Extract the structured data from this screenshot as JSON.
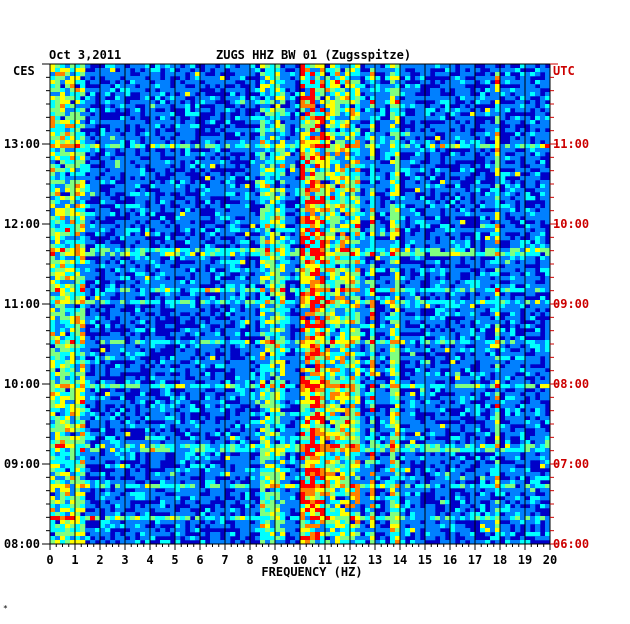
{
  "header": {
    "date": "Oct 3,2011",
    "station": "ZUGS HHZ BW 01 (Zugsspitze)"
  },
  "footnote": "*",
  "chart_data": {
    "type": "heatmap",
    "title": "ZUGS HHZ BW 01 (Zugsspitze)",
    "date": "Oct 3,2011",
    "xlabel": "FREQUENCY (HZ)",
    "xlim": [
      0,
      20
    ],
    "x_ticks": [
      "0",
      "1",
      "2",
      "3",
      "4",
      "5",
      "6",
      "7",
      "8",
      "9",
      "10",
      "11",
      "12",
      "13",
      "14",
      "15",
      "16",
      "17",
      "18",
      "19",
      "20"
    ],
    "left_axis": {
      "zone": "CES",
      "color": "#000000",
      "ticks": [
        {
          "hour": 8,
          "label": "08:00"
        },
        {
          "hour": 9,
          "label": "09:00"
        },
        {
          "hour": 10,
          "label": "10:00"
        },
        {
          "hour": 11,
          "label": "11:00"
        },
        {
          "hour": 12,
          "label": "12:00"
        },
        {
          "hour": 13,
          "label": "13:00"
        }
      ]
    },
    "right_axis": {
      "zone": "UTC",
      "color": "#cc0000",
      "ticks": [
        {
          "hour": 8,
          "label": "06:00"
        },
        {
          "hour": 9,
          "label": "07:00"
        },
        {
          "hour": 10,
          "label": "08:00"
        },
        {
          "hour": 11,
          "label": "09:00"
        },
        {
          "hour": 12,
          "label": "10:00"
        },
        {
          "hour": 13,
          "label": "11:00"
        }
      ]
    },
    "time_range_local_hours": [
      8,
      14
    ],
    "grid": true,
    "colormap": [
      "#00007f",
      "#0000ff",
      "#0080ff",
      "#00ffff",
      "#80ff80",
      "#ffff00",
      "#ff8000",
      "#ff0000"
    ],
    "energy_bands_hz": [
      {
        "from": 0.0,
        "to": 1.5,
        "level": 0.45
      },
      {
        "from": 8.5,
        "to": 9.5,
        "level": 0.4
      },
      {
        "from": 10.0,
        "to": 11.0,
        "level": 0.75
      },
      {
        "from": 11.0,
        "to": 12.5,
        "level": 0.5
      },
      {
        "from": 12.9,
        "to": 13.1,
        "level": 0.6
      },
      {
        "from": 13.7,
        "to": 14.0,
        "level": 0.45
      },
      {
        "from": 17.8,
        "to": 18.0,
        "level": 0.5
      }
    ]
  }
}
